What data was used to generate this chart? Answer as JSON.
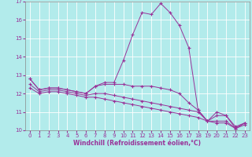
{
  "xlabel": "Windchill (Refroidissement éolien,°C)",
  "background_color": "#b2ebeb",
  "line_color": "#993399",
  "grid_color": "#ffffff",
  "x": [
    0,
    1,
    2,
    3,
    4,
    5,
    6,
    7,
    8,
    9,
    10,
    11,
    12,
    13,
    14,
    15,
    16,
    17,
    18,
    19,
    20,
    21,
    22,
    23
  ],
  "line1": [
    12.8,
    12.2,
    12.3,
    12.3,
    12.2,
    12.1,
    12.0,
    12.4,
    12.6,
    12.6,
    13.8,
    15.2,
    16.4,
    16.3,
    16.9,
    16.4,
    15.7,
    14.5,
    11.1,
    10.5,
    11.0,
    10.8,
    10.2,
    10.4
  ],
  "line2": [
    12.8,
    12.2,
    12.3,
    12.3,
    12.2,
    12.1,
    12.0,
    12.4,
    12.5,
    12.5,
    12.5,
    12.4,
    12.4,
    12.4,
    12.3,
    12.2,
    12.0,
    11.5,
    11.1,
    10.5,
    10.8,
    10.8,
    10.1,
    10.4
  ],
  "line3": [
    12.5,
    12.1,
    12.2,
    12.2,
    12.1,
    12.0,
    11.9,
    12.0,
    12.0,
    11.9,
    11.8,
    11.7,
    11.6,
    11.5,
    11.4,
    11.3,
    11.2,
    11.1,
    11.0,
    10.5,
    10.5,
    10.5,
    10.1,
    10.4
  ],
  "line4": [
    12.3,
    12.0,
    12.1,
    12.1,
    12.0,
    11.9,
    11.8,
    11.8,
    11.7,
    11.6,
    11.5,
    11.4,
    11.3,
    11.2,
    11.1,
    11.0,
    10.9,
    10.8,
    10.7,
    10.5,
    10.4,
    10.4,
    10.1,
    10.3
  ],
  "ylim": [
    10,
    17
  ],
  "xlim": [
    0,
    23
  ],
  "yticks": [
    10,
    11,
    12,
    13,
    14,
    15,
    16,
    17
  ],
  "xticks": [
    0,
    1,
    2,
    3,
    4,
    5,
    6,
    7,
    8,
    9,
    10,
    11,
    12,
    13,
    14,
    15,
    16,
    17,
    18,
    19,
    20,
    21,
    22,
    23
  ]
}
